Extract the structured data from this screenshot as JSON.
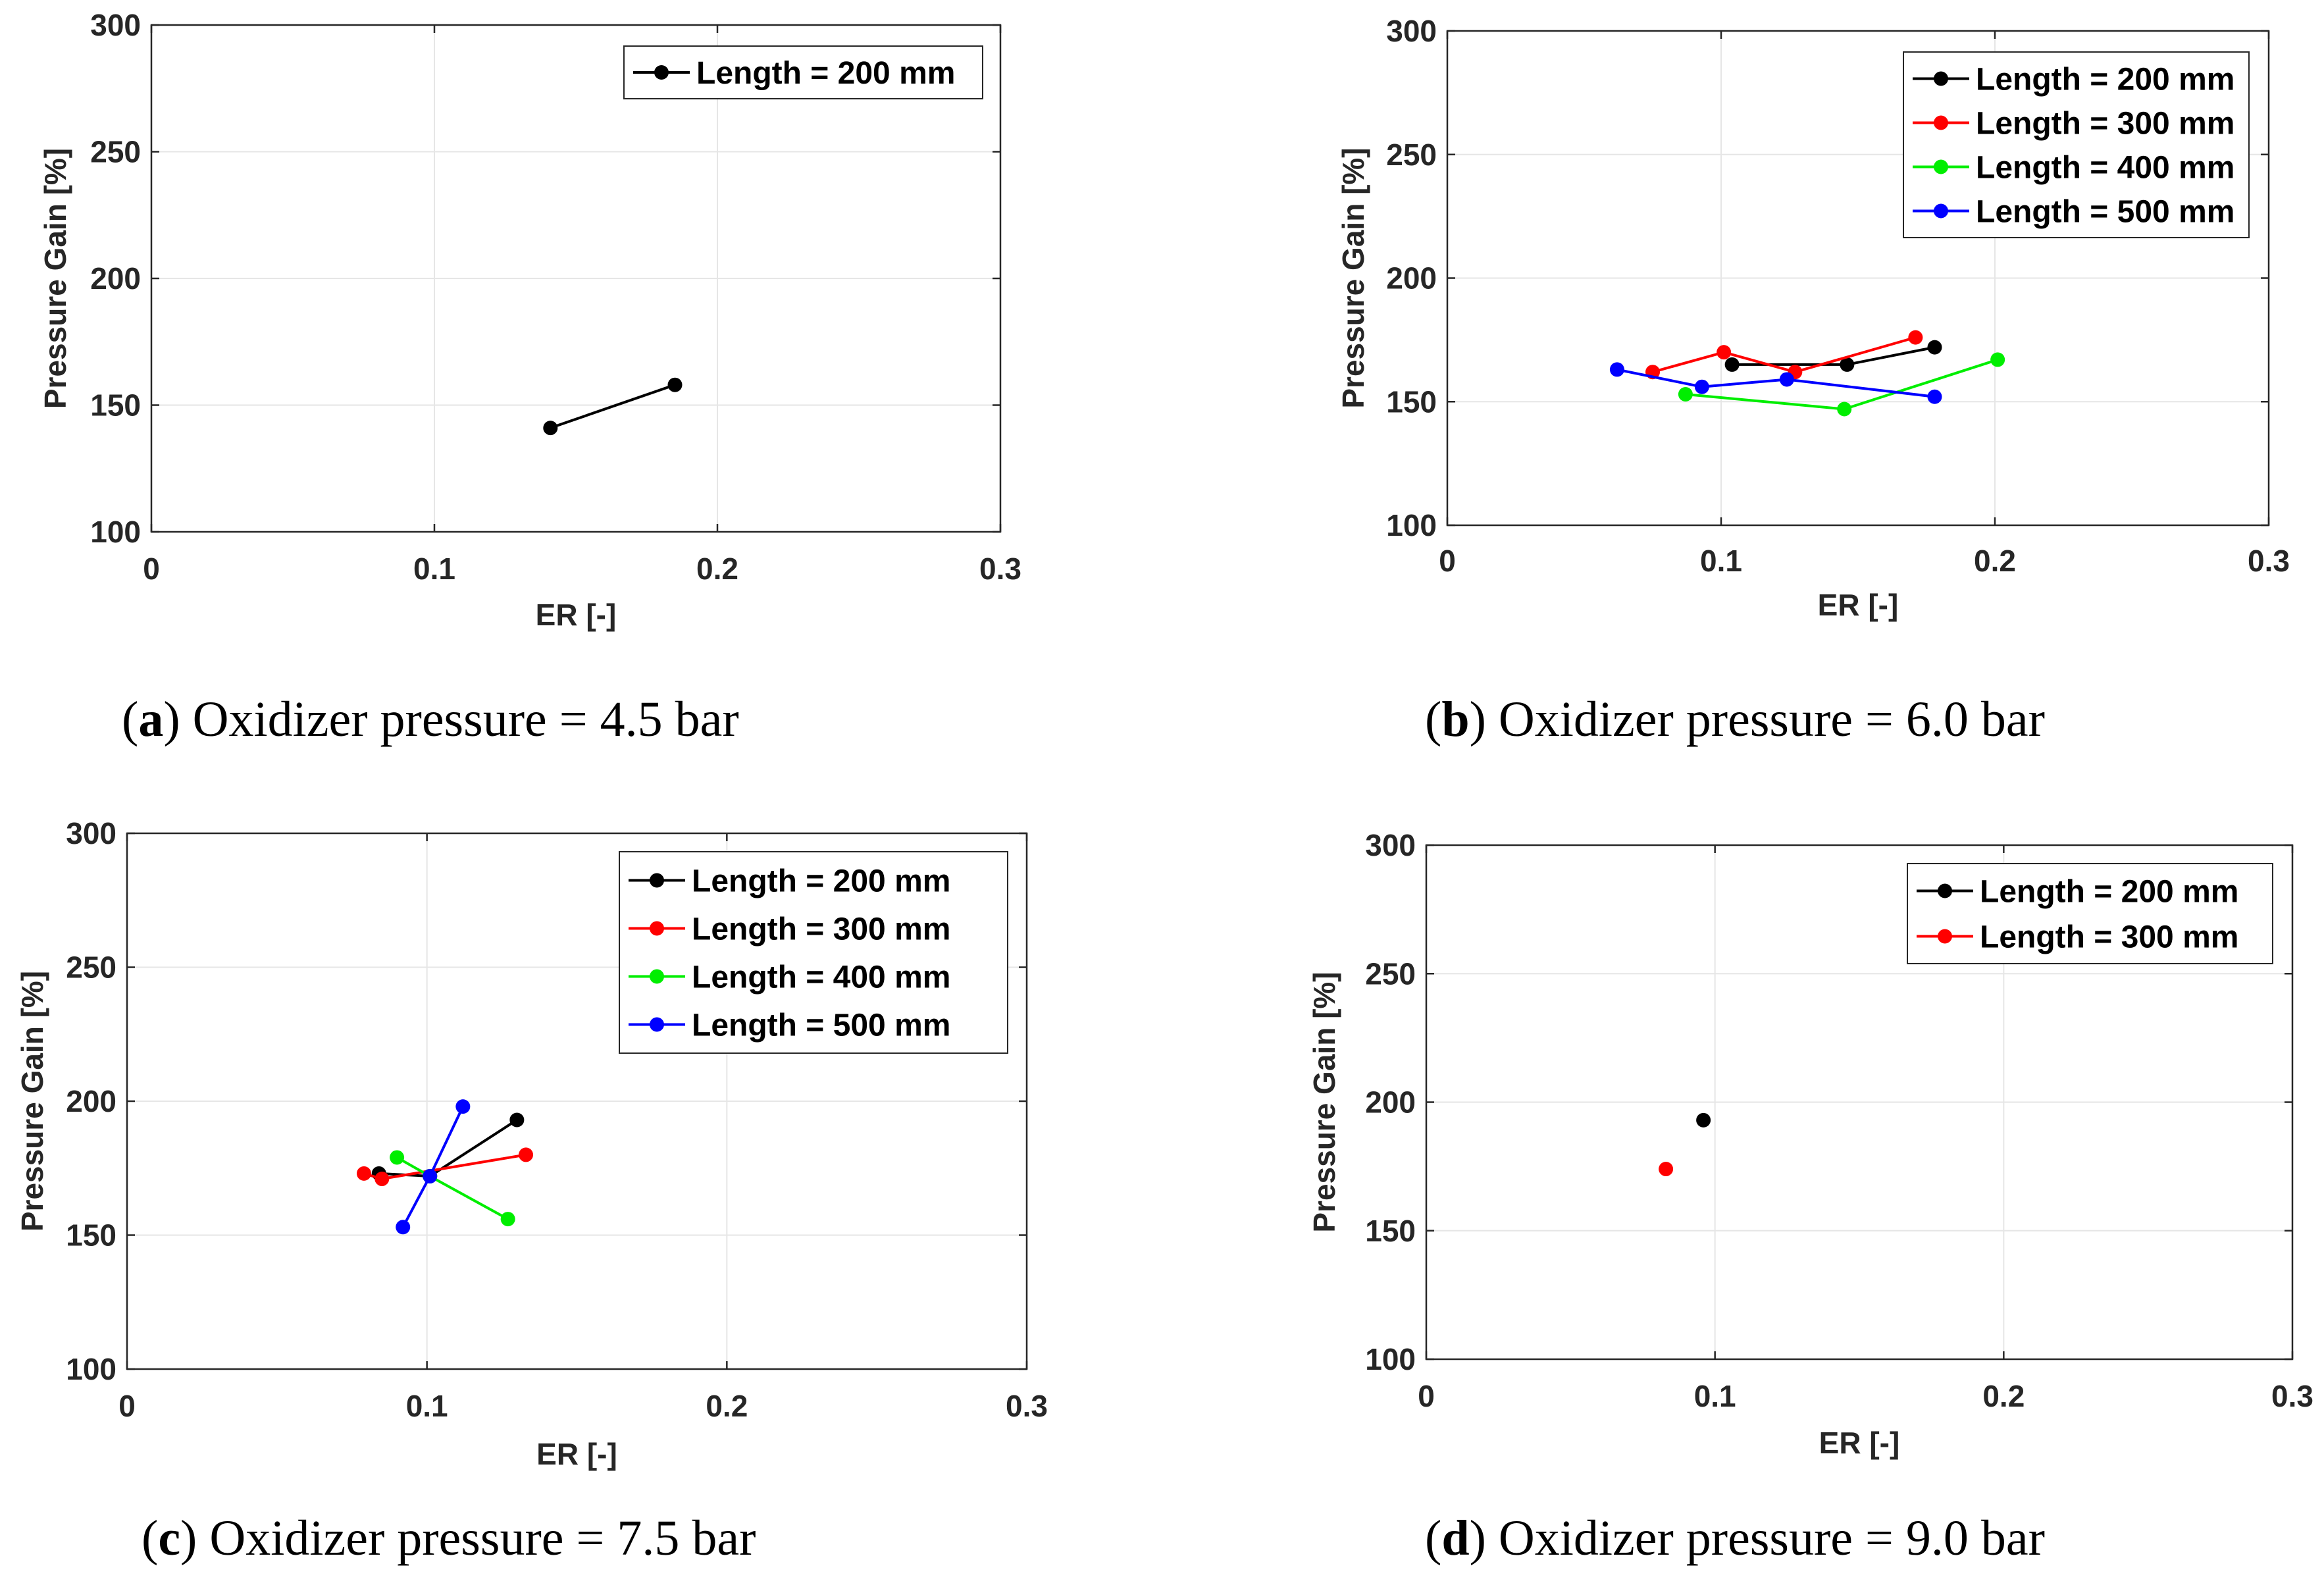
{
  "chart_data": [
    {
      "type": "line",
      "panel": "a",
      "caption": {
        "letter": "a",
        "text": "Oxidizer pressure = 4.5 bar"
      },
      "xlabel": "ER [-]",
      "ylabel": "Pressure Gain [%]",
      "xlim": [
        0,
        0.3
      ],
      "ylim": [
        100,
        300
      ],
      "xticks": [
        "0",
        "0.1",
        "0.2",
        "0.3"
      ],
      "yticks": [
        "100",
        "150",
        "200",
        "250",
        "300"
      ],
      "grid": true,
      "legend_position": "top-right",
      "series": [
        {
          "name": "Length = 200 mm",
          "color": "#000000",
          "points": [
            [
              0.141,
              141
            ],
            [
              0.185,
              158
            ]
          ]
        }
      ]
    },
    {
      "type": "line",
      "panel": "b",
      "caption": {
        "letter": "b",
        "text": "Oxidizer pressure = 6.0 bar"
      },
      "xlabel": "ER [-]",
      "ylabel": "Pressure Gain [%]",
      "xlim": [
        0,
        0.3
      ],
      "ylim": [
        100,
        300
      ],
      "xticks": [
        "0",
        "0.1",
        "0.2",
        "0.3"
      ],
      "yticks": [
        "100",
        "150",
        "200",
        "250",
        "300"
      ],
      "grid": true,
      "legend_position": "top-right",
      "series": [
        {
          "name": "Length = 200 mm",
          "color": "#000000",
          "points": [
            [
              0.104,
              165
            ],
            [
              0.146,
              165
            ],
            [
              0.178,
              172
            ]
          ]
        },
        {
          "name": "Length = 300 mm",
          "color": "#ff0000",
          "points": [
            [
              0.075,
              162
            ],
            [
              0.101,
              170
            ],
            [
              0.127,
              162
            ],
            [
              0.171,
              176
            ]
          ]
        },
        {
          "name": "Length = 400 mm",
          "color": "#00ee00",
          "points": [
            [
              0.087,
              153
            ],
            [
              0.145,
              147
            ],
            [
              0.201,
              167
            ]
          ]
        },
        {
          "name": "Length = 500 mm",
          "color": "#0000ff",
          "points": [
            [
              0.062,
              163
            ],
            [
              0.093,
              156
            ],
            [
              0.124,
              159
            ],
            [
              0.178,
              152
            ]
          ]
        }
      ]
    },
    {
      "type": "line",
      "panel": "c",
      "caption": {
        "letter": "c",
        "text": "Oxidizer pressure = 7.5 bar"
      },
      "xlabel": "ER [-]",
      "ylabel": "Pressure Gain [%]",
      "xlim": [
        0,
        0.3
      ],
      "ylim": [
        100,
        300
      ],
      "xticks": [
        "0",
        "0.1",
        "0.2",
        "0.3"
      ],
      "yticks": [
        "100",
        "150",
        "200",
        "250",
        "300"
      ],
      "grid": true,
      "legend_position": "top-right",
      "series": [
        {
          "name": "Length = 200 mm",
          "color": "#000000",
          "points": [
            [
              0.084,
              173
            ],
            [
              0.101,
              172
            ],
            [
              0.13,
              193
            ]
          ]
        },
        {
          "name": "Length = 300 mm",
          "color": "#ff0000",
          "points": [
            [
              0.079,
              173
            ],
            [
              0.085,
              171
            ],
            [
              0.133,
              180
            ]
          ]
        },
        {
          "name": "Length = 400 mm",
          "color": "#00ee00",
          "points": [
            [
              0.09,
              179
            ],
            [
              0.101,
              172
            ],
            [
              0.127,
              156
            ]
          ]
        },
        {
          "name": "Length = 500 mm",
          "color": "#0000ff",
          "points": [
            [
              0.092,
              153
            ],
            [
              0.101,
              172
            ],
            [
              0.112,
              198
            ]
          ]
        }
      ]
    },
    {
      "type": "scatter",
      "panel": "d",
      "caption": {
        "letter": "d",
        "text": "Oxidizer pressure = 9.0 bar"
      },
      "xlabel": "ER [-]",
      "ylabel": "Pressure Gain [%]",
      "xlim": [
        0,
        0.3
      ],
      "ylim": [
        100,
        300
      ],
      "xticks": [
        "0",
        "0.1",
        "0.2",
        "0.3"
      ],
      "yticks": [
        "100",
        "150",
        "200",
        "250",
        "300"
      ],
      "grid": true,
      "legend_position": "top-right",
      "series": [
        {
          "name": "Length = 200 mm",
          "color": "#000000",
          "points": [
            [
              0.096,
              193
            ]
          ]
        },
        {
          "name": "Length = 300 mm",
          "color": "#ff0000",
          "points": [
            [
              0.083,
              174
            ]
          ]
        }
      ]
    }
  ]
}
